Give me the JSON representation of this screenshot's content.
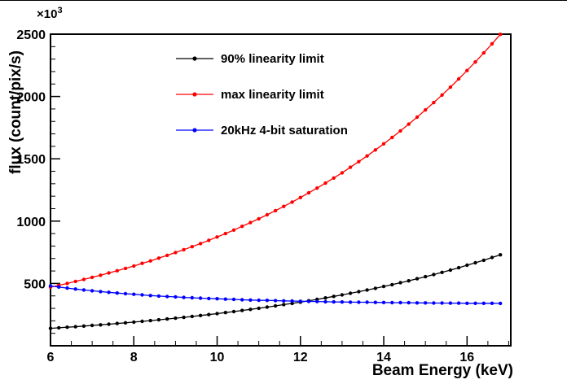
{
  "chart_data": {
    "type": "line",
    "title": "",
    "xlabel": "Beam Energy (keV)",
    "ylabel": "flux (count/pix/s)",
    "y_scale": {
      "base": "×10",
      "exp": "3"
    },
    "marker": "filled-circle",
    "grid": false,
    "legend_position": "top-left-inside",
    "xlim": [
      6,
      17.05
    ],
    "ylim": [
      0,
      2500
    ],
    "x_ticks": [
      6,
      8,
      10,
      12,
      14,
      16
    ],
    "x_minor_step": 0.5,
    "y_ticks": [
      0,
      500,
      1000,
      1500,
      2000,
      2500
    ],
    "y_tick_labels": [
      "",
      "500",
      "1000",
      "1500",
      "2000",
      "2500"
    ],
    "y_minor_step": 100,
    "y_values_unit": "x10^3 count/pix/s",
    "x": [
      6,
      6.2,
      6.4,
      6.6,
      6.8,
      7,
      7.2,
      7.4,
      7.6,
      7.8,
      8,
      8.2,
      8.4,
      8.6,
      8.8,
      9,
      9.2,
      9.4,
      9.6,
      9.8,
      10,
      10.2,
      10.4,
      10.6,
      10.8,
      11,
      11.2,
      11.4,
      11.6,
      11.8,
      12,
      12.2,
      12.4,
      12.6,
      12.8,
      13,
      13.2,
      13.4,
      13.6,
      13.8,
      14,
      14.2,
      14.4,
      14.6,
      14.8,
      15,
      15.2,
      15.4,
      15.6,
      15.8,
      16,
      16.2,
      16.4,
      16.6,
      16.8
    ],
    "series": [
      {
        "name": "90% linearity limit",
        "color": "#000000",
        "values": [
          140,
          144,
          149,
          153,
          158,
          163,
          168,
          173,
          179,
          184,
          190,
          196,
          202,
          208,
          215,
          221,
          228,
          235,
          243,
          250,
          258,
          266,
          274,
          283,
          292,
          301,
          310,
          320,
          330,
          340,
          350,
          361,
          372,
          384,
          396,
          408,
          421,
          434,
          447,
          461,
          476,
          490,
          506,
          521,
          538,
          554,
          571,
          589,
          607,
          626,
          646,
          666,
          686,
          708,
          730
        ]
      },
      {
        "name": "max linearity limit",
        "color": "#ff0000",
        "values": [
          470,
          485,
          500,
          516,
          532,
          549,
          566,
          584,
          602,
          621,
          640,
          661,
          681,
          703,
          725,
          748,
          771,
          795,
          820,
          846,
          873,
          900,
          928,
          958,
          988,
          1019,
          1051,
          1084,
          1118,
          1153,
          1189,
          1227,
          1265,
          1305,
          1346,
          1388,
          1432,
          1477,
          1523,
          1571,
          1620,
          1671,
          1724,
          1778,
          1834,
          1892,
          1951,
          2012,
          2075,
          2141,
          2208,
          2277,
          2349,
          2423,
          2499
        ]
      },
      {
        "name": "20kHz 4-bit saturation",
        "color": "#0000ff",
        "values": [
          480,
          471,
          463,
          455,
          448,
          441,
          435,
          429,
          423,
          418,
          413,
          408,
          403,
          399,
          395,
          392,
          388,
          385,
          382,
          379,
          377,
          374,
          372,
          369,
          367,
          365,
          364,
          362,
          360,
          359,
          357,
          356,
          355,
          353,
          352,
          351,
          350,
          349,
          349,
          348,
          347,
          346,
          346,
          345,
          344,
          344,
          343,
          343,
          342,
          342,
          341,
          341,
          341,
          341,
          340
        ]
      }
    ]
  }
}
